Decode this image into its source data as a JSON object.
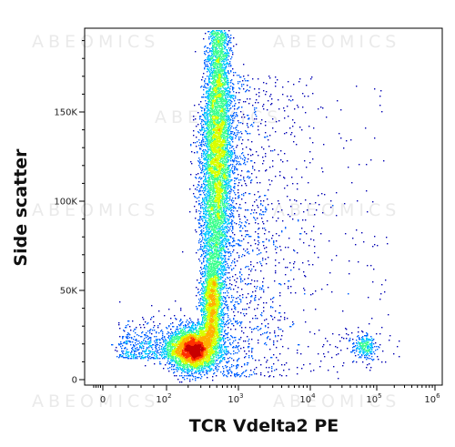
{
  "chart_data": {
    "type": "scatter",
    "style": "density dot plot (flow cytometry)",
    "xlabel": "TCR Vdelta2 PE",
    "ylabel": "Side scatter",
    "x_scale": "biexponential (log above ~100)",
    "x_ticks": [
      {
        "value": 0,
        "label": "0"
      },
      {
        "value": 100,
        "label": "10",
        "exp": "2"
      },
      {
        "value": 1000,
        "label": "10",
        "exp": "3"
      },
      {
        "value": 10000,
        "label": "10",
        "exp": "4"
      },
      {
        "value": 100000,
        "label": "10",
        "exp": "5"
      },
      {
        "value": 1000000,
        "label": "10",
        "exp": "6"
      }
    ],
    "y_ticks": [
      {
        "value": 0,
        "label": "0"
      },
      {
        "value": 50000,
        "label": "50K"
      },
      {
        "value": 100000,
        "label": "100K"
      },
      {
        "value": 150000,
        "label": "150K"
      }
    ],
    "ylim": [
      -5000,
      197000
    ],
    "grid": false,
    "populations": [
      {
        "description": "lymphocytes, Vdelta2 negative",
        "x_center": 250,
        "y_center": 17000,
        "density": "highest"
      },
      {
        "description": "granulocytes / high side scatter, Vdelta2 negative",
        "x_center": 500,
        "y_center": 130000,
        "density": "high"
      },
      {
        "description": "TCR Vdelta2 positive cells",
        "x_center": 65000,
        "y_center": 19000,
        "density": "low"
      }
    ],
    "density_colors": [
      "#0000b4",
      "#0060ff",
      "#00c8ff",
      "#40ff90",
      "#d8ff00",
      "#ffb000",
      "#ff3000",
      "#c80000"
    ]
  },
  "watermark": "ABEOMICS"
}
